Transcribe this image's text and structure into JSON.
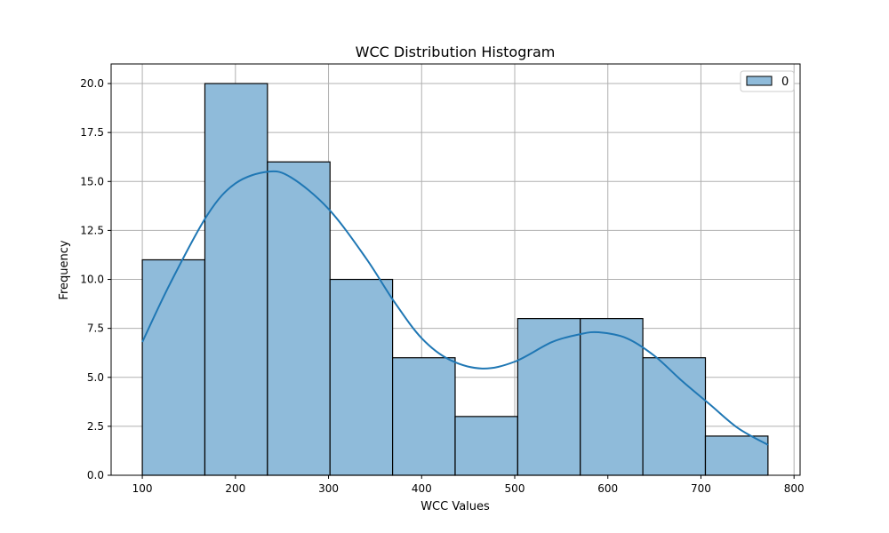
{
  "chart_data": {
    "type": "bar",
    "title": "WCC Distribution Histogram",
    "xlabel": "WCC Values",
    "ylabel": "Frequency",
    "xlim": [
      66.5,
      806.5
    ],
    "ylim": [
      0,
      21
    ],
    "xticks": [
      100,
      200,
      300,
      400,
      500,
      600,
      700,
      800
    ],
    "xtick_labels": [
      "100",
      "200",
      "300",
      "400",
      "500",
      "600",
      "700",
      "800"
    ],
    "yticks": [
      0,
      2.5,
      5,
      7.5,
      10,
      12.5,
      15,
      17.5,
      20
    ],
    "ytick_labels": [
      "0.0",
      "2.5",
      "5.0",
      "7.5",
      "10.0",
      "12.5",
      "15.0",
      "17.5",
      "20.0"
    ],
    "grid": true,
    "legend": {
      "position": "top-right",
      "entries": [
        "0"
      ]
    },
    "bin_edges": [
      100,
      167.2,
      234.4,
      301.6,
      368.8,
      436,
      503.2,
      570.4,
      637.6,
      704.8,
      772
    ],
    "values": [
      11,
      20,
      16,
      10,
      6,
      3,
      8,
      8,
      6,
      2
    ],
    "kde": {
      "x": [
        100,
        130,
        170,
        200,
        235,
        260,
        300,
        340,
        370,
        400,
        430,
        465,
        500,
        540,
        570,
        590,
        620,
        650,
        680,
        710,
        740,
        772
      ],
      "y": [
        6.8,
        9.8,
        13.3,
        14.9,
        15.5,
        15.2,
        13.6,
        11.1,
        8.9,
        7.0,
        5.9,
        5.45,
        5.8,
        6.8,
        7.2,
        7.3,
        7.0,
        6.1,
        4.8,
        3.6,
        2.4,
        1.55
      ]
    },
    "colors": {
      "bar_fill": "#8fbbda",
      "bar_edge": "#000000",
      "kde_line": "#1f77b4",
      "grid": "#b0b0b0"
    }
  }
}
